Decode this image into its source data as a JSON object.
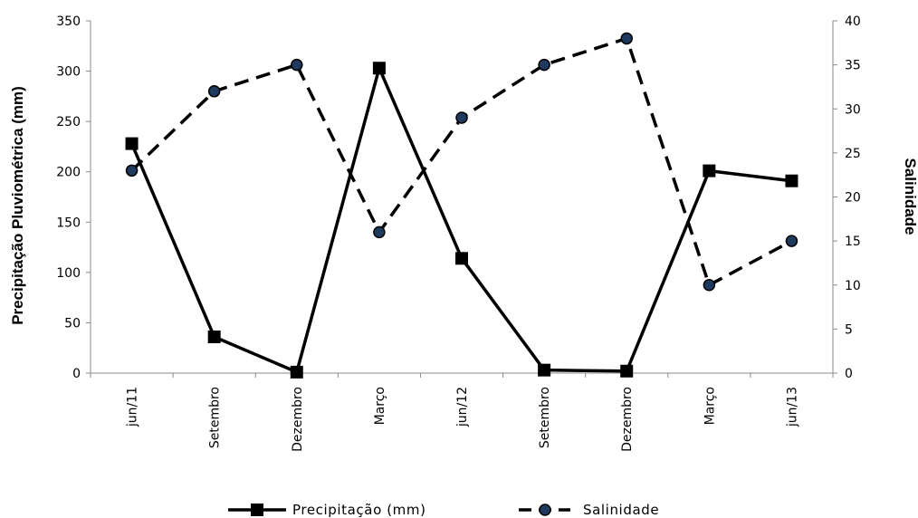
{
  "chart_data": {
    "type": "line",
    "categories": [
      "jun/11",
      "Setembro",
      "Dezembro",
      "Março",
      "jun/12",
      "Setembro",
      "Dezembro",
      "Março",
      "jun/13"
    ],
    "series": [
      {
        "name": "Precipitação (mm)",
        "axis": "left",
        "values": [
          228,
          36,
          1,
          303,
          114,
          3,
          2,
          201,
          191
        ],
        "color": "#000000",
        "line_style": "solid",
        "marker": "square"
      },
      {
        "name": "Salinidade",
        "axis": "right",
        "values": [
          23,
          32,
          35,
          16,
          29,
          35,
          38,
          10,
          15
        ],
        "color": "#000000",
        "marker_fill": "#1f3a5f",
        "line_style": "dashed",
        "marker": "circle"
      }
    ],
    "ylabel": "Precipitação Pluviométrica (mm)",
    "y2label": "Salinidade",
    "ylim": [
      0,
      350
    ],
    "y2lim": [
      0,
      40
    ],
    "yticks": [
      0,
      50,
      100,
      150,
      200,
      250,
      300,
      350
    ],
    "y2ticks": [
      0,
      5,
      10,
      15,
      20,
      25,
      30,
      35,
      40
    ],
    "grid": false,
    "legend": "bottom"
  }
}
